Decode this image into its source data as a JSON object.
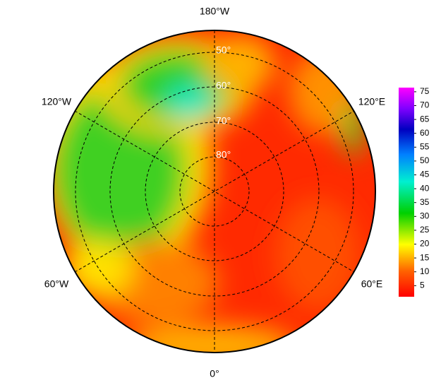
{
  "map": {
    "longitude_labels": [
      "180°W",
      "120°W",
      "120°E",
      "60°W",
      "60°E",
      "0°"
    ],
    "latitude_labels": [
      "50°",
      "60°",
      "70°",
      "80°"
    ],
    "colorbar": {
      "lim": [
        1,
        76.5
      ],
      "ticks": [
        5,
        10,
        15,
        20,
        25,
        30,
        35,
        40,
        45,
        50,
        55,
        60,
        65,
        70,
        75
      ]
    }
  }
}
